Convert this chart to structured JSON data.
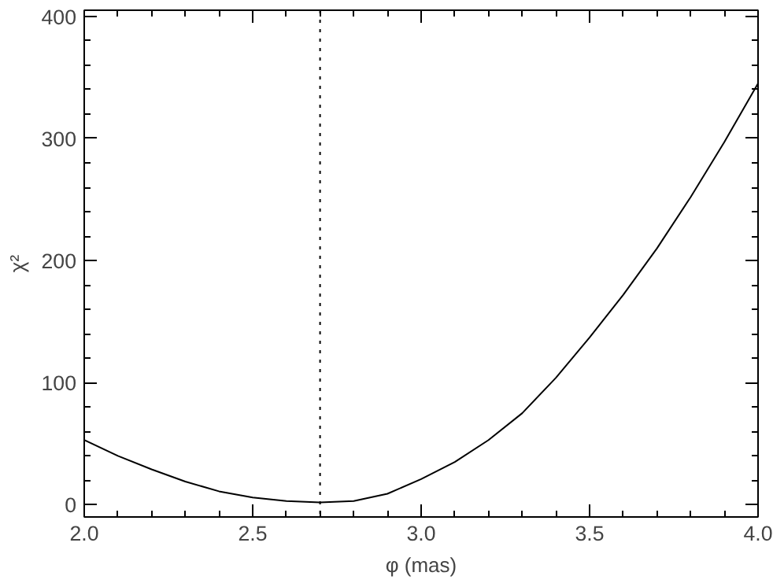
{
  "chart_data": {
    "type": "line",
    "xlabel": "φ (mas)",
    "ylabel": "χ²",
    "x": [
      2.0,
      2.1,
      2.2,
      2.3,
      2.4,
      2.5,
      2.6,
      2.7,
      2.8,
      2.9,
      3.0,
      3.1,
      3.2,
      3.3,
      3.4,
      3.5,
      3.6,
      3.7,
      3.8,
      3.9,
      4.0
    ],
    "series": [
      {
        "color": "#000000",
        "values": [
          53,
          40,
          29,
          19,
          11,
          6,
          3,
          2,
          3,
          9,
          21,
          35,
          53,
          75,
          104,
          137,
          172,
          210,
          252,
          297,
          345
        ]
      }
    ],
    "xlim": [
      2.0,
      4.0
    ],
    "ylim": [
      -10,
      405
    ],
    "xticks": [
      {
        "value": 2,
        "label": "2.0"
      },
      {
        "value": 2.5,
        "label": "2.5"
      },
      {
        "value": 3,
        "label": "3.0"
      },
      {
        "value": 3.5,
        "label": "3.5"
      },
      {
        "value": 4,
        "label": "4.0"
      }
    ],
    "yticks": [
      0,
      100,
      200,
      300,
      400
    ],
    "ref_lines": [
      {
        "axis": "x",
        "value": 2.7,
        "line_style": "dotted",
        "color": "#000000"
      }
    ],
    "grid": false,
    "marker": "none",
    "line_style": "solid"
  }
}
